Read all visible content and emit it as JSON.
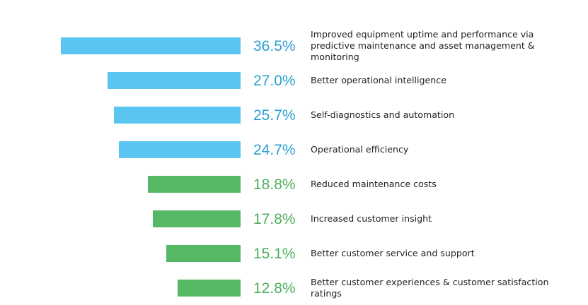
{
  "chart_data": {
    "type": "bar",
    "orientation": "horizontal",
    "title": "",
    "xlabel": "",
    "ylabel": "",
    "unit": "%",
    "categories": [
      "Improved equipment uptime and performance via predictive maintenance and asset management & monitoring",
      "Better operational intelligence",
      "Self-diagnostics and automation",
      "Operational efficiency",
      "Reduced maintenance costs",
      "Increased customer insight",
      "Better customer service and support",
      "Better customer experiences & customer satisfaction ratings"
    ],
    "values": [
      36.5,
      27.0,
      25.7,
      24.7,
      18.8,
      17.8,
      15.1,
      12.8
    ],
    "value_labels": [
      "36.5%",
      "27.0%",
      "25.7%",
      "24.7%",
      "18.8%",
      "17.8%",
      "15.1%",
      "12.8%"
    ],
    "colors": [
      "#5bc5f2",
      "#5bc5f2",
      "#5bc5f2",
      "#5bc5f2",
      "#54b864",
      "#54b864",
      "#54b864",
      "#54b864"
    ],
    "label_colors": [
      "#2b9fd4",
      "#2b9fd4",
      "#2b9fd4",
      "#2b9fd4",
      "#4cae5c",
      "#4cae5c",
      "#4cae5c",
      "#4cae5c"
    ],
    "xlim": [
      0,
      36.5
    ],
    "grid": false,
    "legend": "none"
  }
}
